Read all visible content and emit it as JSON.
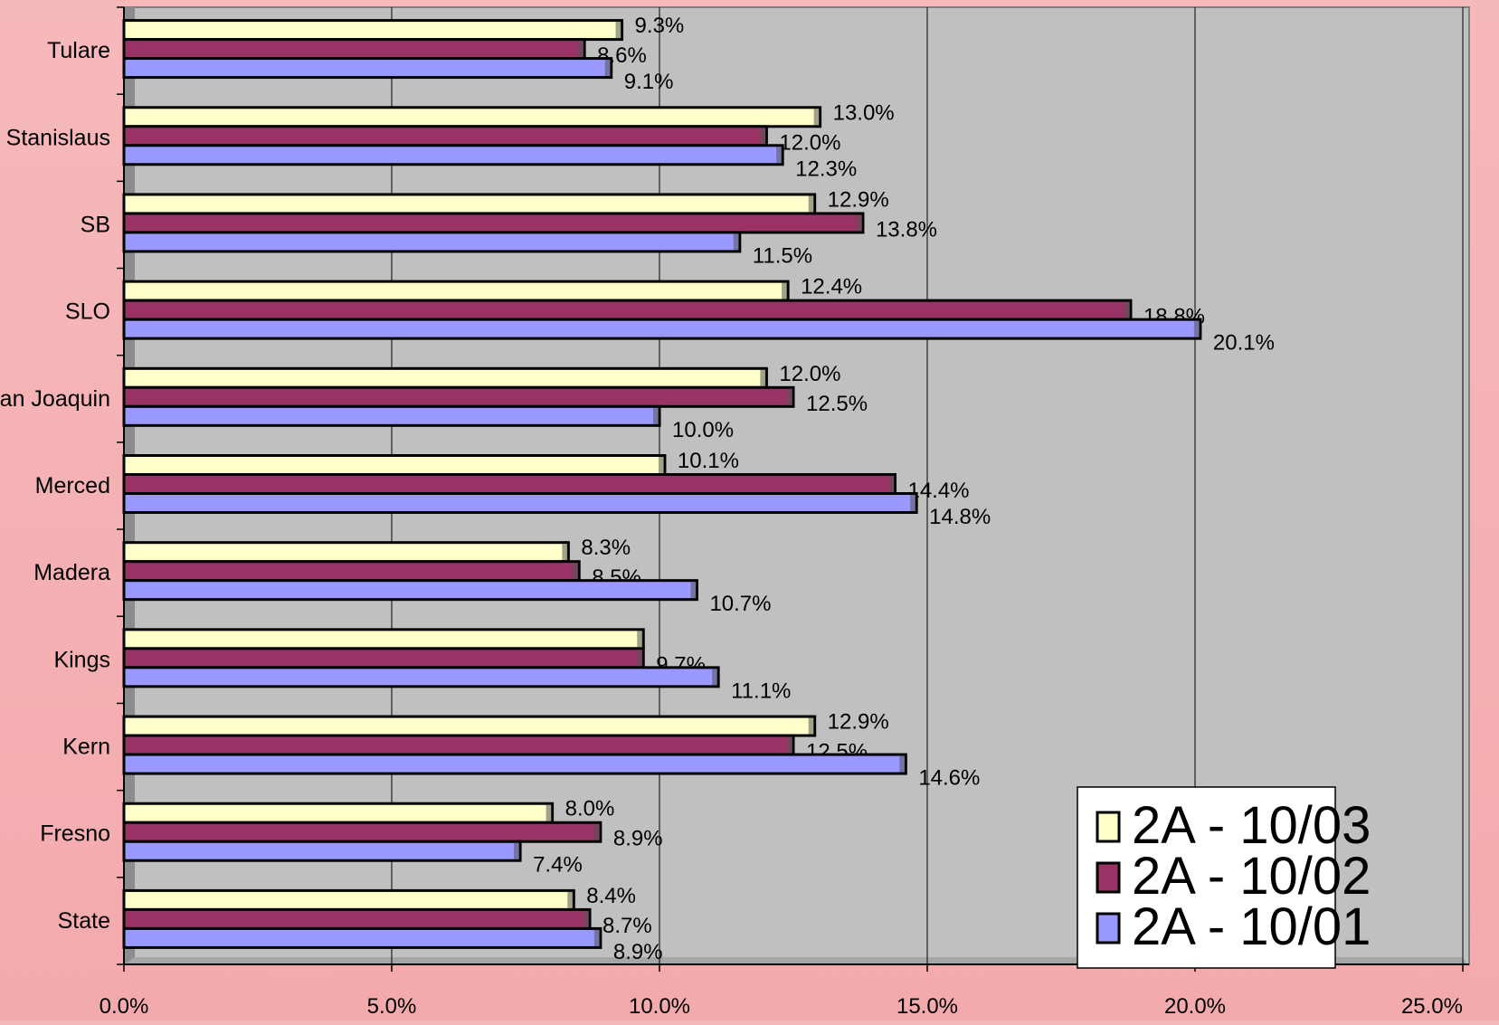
{
  "chart_data": {
    "type": "bar",
    "orientation": "horizontal",
    "categories": [
      "Tulare",
      "Stanislaus",
      "SB",
      "SLO",
      "San Joaquin",
      "Merced",
      "Madera",
      "Kings",
      "Kern",
      "Fresno",
      "State"
    ],
    "series": [
      {
        "name": "2A - 10/03",
        "color": "#ffffcc",
        "values": [
          9.3,
          13.0,
          12.9,
          12.4,
          12.0,
          10.1,
          8.3,
          9.7,
          12.9,
          8.0,
          8.4
        ]
      },
      {
        "name": "2A - 10/02",
        "color": "#993366",
        "values": [
          8.6,
          12.0,
          13.8,
          18.8,
          12.5,
          14.4,
          8.5,
          9.7,
          12.5,
          8.9,
          8.7
        ]
      },
      {
        "name": "2A - 10/01",
        "color": "#9999ff",
        "values": [
          9.1,
          12.3,
          11.5,
          20.1,
          10.0,
          14.8,
          10.7,
          11.1,
          14.6,
          7.4,
          8.9
        ]
      }
    ],
    "value_labels": [
      [
        "9.3%",
        "13.0%",
        "12.9%",
        "12.4%",
        "12.0%",
        "10.1%",
        "8.3%",
        "",
        "12.9%",
        "8.0%",
        "8.4%"
      ],
      [
        "8.6%",
        "12.0%",
        "13.8%",
        "18.8%",
        "12.5%",
        "14.4%",
        "8.5%",
        "9.7%",
        "12.5%",
        "8.9%",
        "8.7%"
      ],
      [
        "9.1%",
        "12.3%",
        "11.5%",
        "20.1%",
        "10.0%",
        "14.8%",
        "10.7%",
        "11.1%",
        "14.6%",
        "7.4%",
        "8.9%"
      ]
    ],
    "x_ticks": [
      "0.0%",
      "5.0%",
      "10.0%",
      "15.0%",
      "20.0%",
      "25.0%"
    ],
    "xlim": [
      0,
      25
    ],
    "grid": "vertical",
    "plot_background": "#c0c0c0",
    "legend": {
      "position": "bottom-right"
    }
  }
}
